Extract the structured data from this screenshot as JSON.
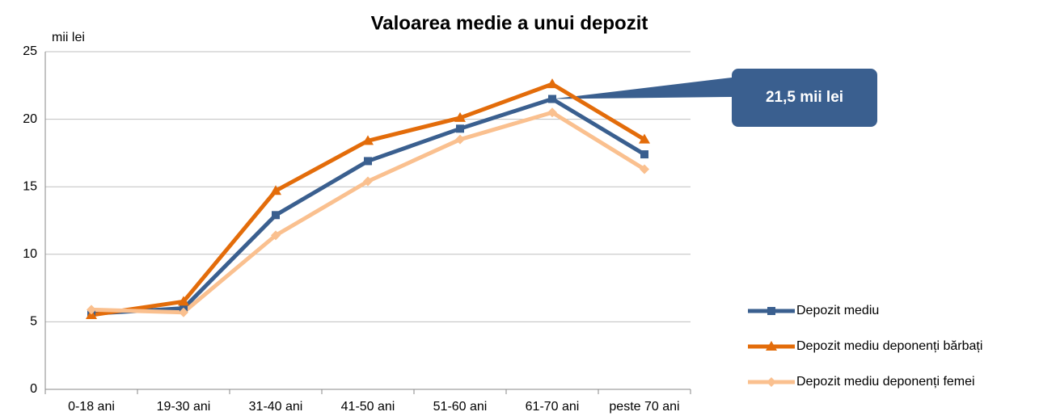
{
  "chart_data": {
    "type": "line",
    "title": "Valoarea medie a unui depozit",
    "y_label": "mii lei",
    "categories": [
      "0-18 ani",
      "19-30 ani",
      "31-40 ani",
      "41-50 ani",
      "51-60 ani",
      "61-70 ani",
      "peste 70 ani"
    ],
    "series": [
      {
        "name": "Depozit mediu",
        "color": "#3a5f8f",
        "marker": "square",
        "values": [
          5.6,
          6.0,
          12.9,
          16.9,
          19.3,
          21.5,
          17.4
        ]
      },
      {
        "name": "Depozit mediu deponenți bărbați",
        "color": "#e36c0a",
        "marker": "triangle",
        "values": [
          5.5,
          6.5,
          14.7,
          18.4,
          20.1,
          22.6,
          18.5
        ]
      },
      {
        "name": "Depozit mediu deponenți femei",
        "color": "#fac08f",
        "marker": "diamond",
        "values": [
          5.9,
          5.7,
          11.4,
          15.4,
          18.5,
          20.5,
          16.3
        ]
      }
    ],
    "annotation": {
      "text": "21,5 mii lei",
      "series": 0,
      "index": 5
    },
    "ylim": [
      0,
      25
    ],
    "yticks": [
      0,
      5,
      10,
      15,
      20,
      25
    ],
    "grid": true,
    "legend": "right"
  }
}
